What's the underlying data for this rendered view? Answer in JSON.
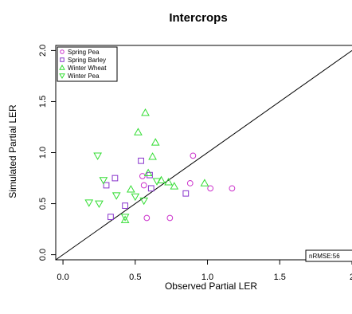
{
  "chart_data": {
    "type": "scatter",
    "title": "Intercrops",
    "xlabel": "Observed Partial LER",
    "ylabel": "Simulated Partial LER",
    "xlim": [
      -0.05,
      2.0
    ],
    "ylim": [
      -0.05,
      2.05
    ],
    "x_ticks": [
      "0.0",
      "0.5",
      "1.0",
      "1.5",
      "2"
    ],
    "y_ticks": [
      "0.0",
      "0.5",
      "1.0",
      "1.5",
      "2.0"
    ],
    "grid": false,
    "reference_line": "1:1",
    "legend_position": "top-left",
    "annotation": "nRMSE:56",
    "series": [
      {
        "name": "Spring Pea",
        "marker": "circle",
        "color": "#cc33cc",
        "points": [
          [
            0.55,
            0.77
          ],
          [
            0.56,
            0.68
          ],
          [
            0.58,
            0.36
          ],
          [
            0.74,
            0.36
          ],
          [
            0.88,
            0.7
          ],
          [
            0.9,
            0.97
          ],
          [
            1.02,
            0.65
          ],
          [
            1.17,
            0.65
          ]
        ]
      },
      {
        "name": "Spring Barley",
        "marker": "square",
        "color": "#8833cc",
        "points": [
          [
            0.3,
            0.68
          ],
          [
            0.33,
            0.37
          ],
          [
            0.36,
            0.75
          ],
          [
            0.43,
            0.48
          ],
          [
            0.54,
            0.92
          ],
          [
            0.6,
            0.78
          ],
          [
            0.61,
            0.65
          ],
          [
            0.85,
            0.6
          ]
        ]
      },
      {
        "name": "Winter Wheat",
        "marker": "triangle-up",
        "color": "#33dd33",
        "points": [
          [
            0.43,
            0.34
          ],
          [
            0.47,
            0.64
          ],
          [
            0.52,
            1.2
          ],
          [
            0.57,
            1.39
          ],
          [
            0.59,
            0.8
          ],
          [
            0.62,
            0.96
          ],
          [
            0.64,
            1.1
          ],
          [
            0.68,
            0.73
          ],
          [
            0.73,
            0.71
          ],
          [
            0.77,
            0.67
          ],
          [
            0.98,
            0.7
          ]
        ]
      },
      {
        "name": "Winter Pea",
        "marker": "triangle-down",
        "color": "#33dd33",
        "points": [
          [
            0.18,
            0.51
          ],
          [
            0.24,
            0.97
          ],
          [
            0.25,
            0.5
          ],
          [
            0.28,
            0.73
          ],
          [
            0.37,
            0.58
          ],
          [
            0.43,
            0.37
          ],
          [
            0.5,
            0.57
          ],
          [
            0.56,
            0.53
          ],
          [
            0.65,
            0.72
          ]
        ]
      }
    ]
  }
}
